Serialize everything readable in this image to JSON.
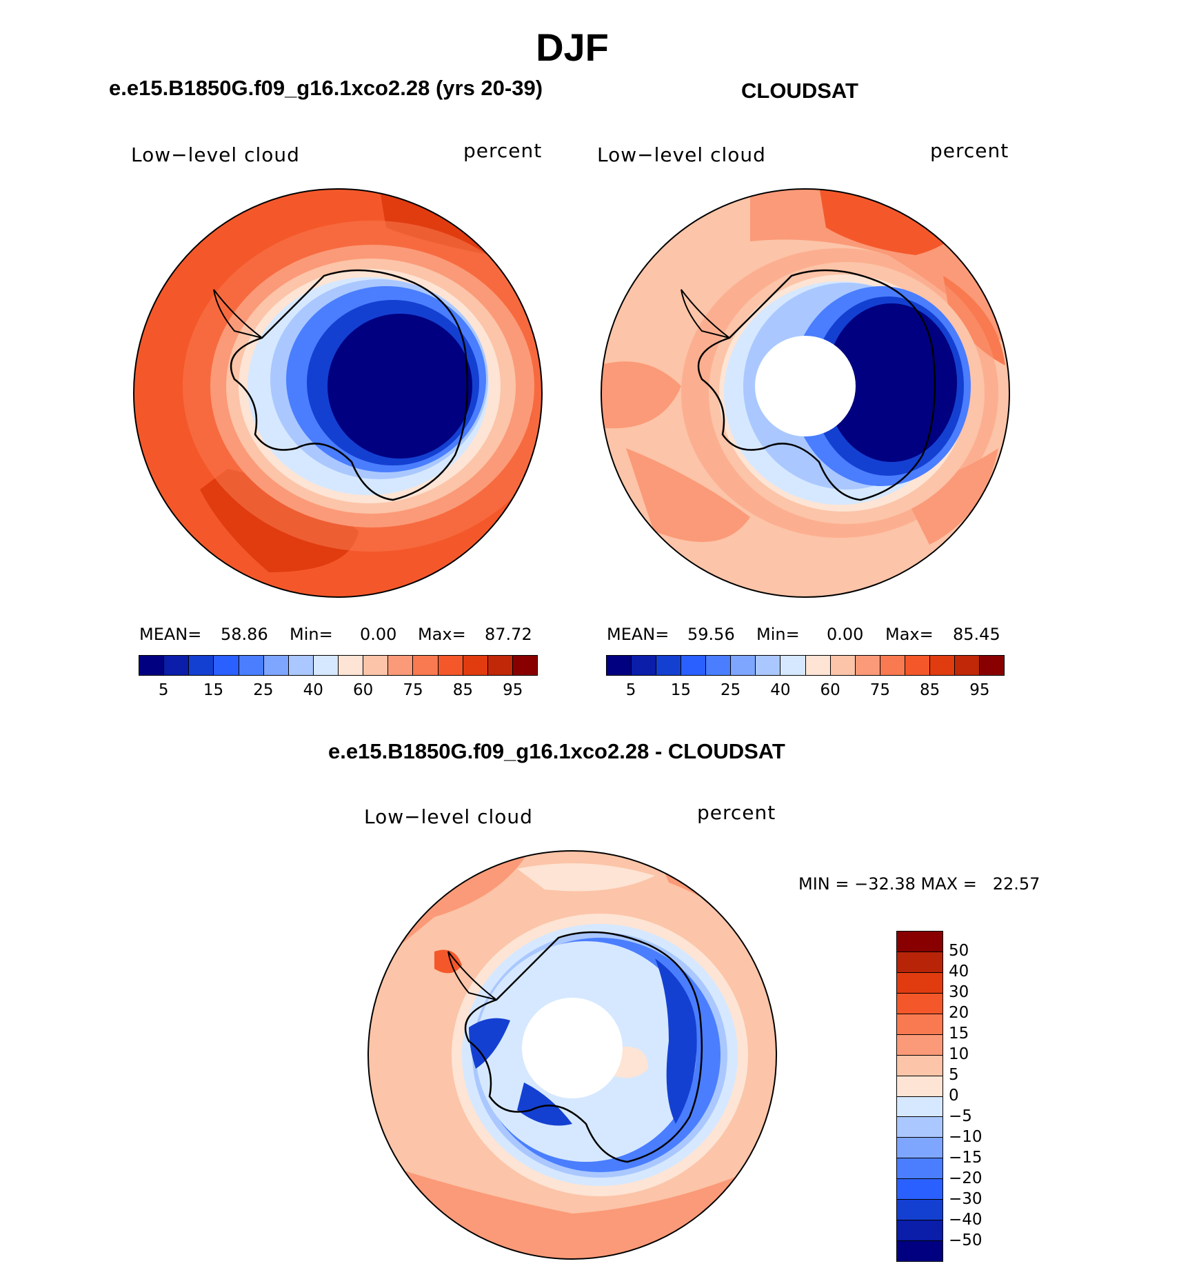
{
  "figure_title": "DJF",
  "colors": {
    "abs_scale": [
      "#000080",
      "#0a1eaa",
      "#1440d2",
      "#2a60ff",
      "#4a7eff",
      "#7ea6ff",
      "#aac8ff",
      "#d6e8ff",
      "#fde4d4",
      "#fcc4a8",
      "#fb9a78",
      "#f97a50",
      "#f4582a",
      "#e03c10",
      "#c02808",
      "#880000"
    ],
    "diff_scale": [
      "#880000",
      "#b82408",
      "#e03c10",
      "#f4582a",
      "#f97a50",
      "#fb9a78",
      "#fcc4a8",
      "#fde4d4",
      "#d6e8ff",
      "#aac8ff",
      "#7ea6ff",
      "#4a7eff",
      "#2a60ff",
      "#1440d2",
      "#0a1eaa",
      "#000080"
    ]
  },
  "chart_data": [
    {
      "type": "heatmap",
      "projection": "south-polar-stereographic",
      "title": "e.e15.B1850G.f09_g16.1xco2.28 (yrs 20-39)",
      "variable_label": "Low−level cloud",
      "units_label": "percent",
      "stats": {
        "mean_label": "MEAN=",
        "mean": "58.86",
        "min_label": "Min=",
        "min": "0.00",
        "max_label": "Max=",
        "max": "87.72"
      },
      "levels": [
        5,
        10,
        15,
        20,
        25,
        30,
        40,
        50,
        60,
        70,
        75,
        80,
        85,
        90,
        95
      ],
      "tick_labels": [
        "5",
        "15",
        "25",
        "40",
        "60",
        "75",
        "85",
        "95"
      ]
    },
    {
      "type": "heatmap",
      "projection": "south-polar-stereographic",
      "title": "CLOUDSAT",
      "variable_label": "Low−level cloud",
      "units_label": "percent",
      "stats": {
        "mean_label": "MEAN=",
        "mean": "59.56",
        "min_label": "Min=",
        "min": "0.00",
        "max_label": "Max=",
        "max": "85.45"
      },
      "levels": [
        5,
        10,
        15,
        20,
        25,
        30,
        40,
        50,
        60,
        70,
        75,
        80,
        85,
        90,
        95
      ],
      "tick_labels": [
        "5",
        "15",
        "25",
        "40",
        "60",
        "75",
        "85",
        "95"
      ]
    },
    {
      "type": "heatmap",
      "projection": "south-polar-stereographic",
      "title": "e.e15.B1850G.f09_g16.1xco2.28 - CLOUDSAT",
      "variable_label": "Low−level cloud",
      "units_label": "percent",
      "stats_line": "MIN = −32.38 MAX =   22.57",
      "levels": [
        50,
        40,
        30,
        20,
        15,
        10,
        5,
        0,
        -5,
        -10,
        -15,
        -20,
        -30,
        -40,
        -50
      ],
      "tick_labels": [
        "50",
        "40",
        "30",
        "20",
        "15",
        "10",
        "5",
        "0",
        "−5",
        "−10",
        "−15",
        "−20",
        "−30",
        "−40",
        "−50"
      ]
    }
  ]
}
